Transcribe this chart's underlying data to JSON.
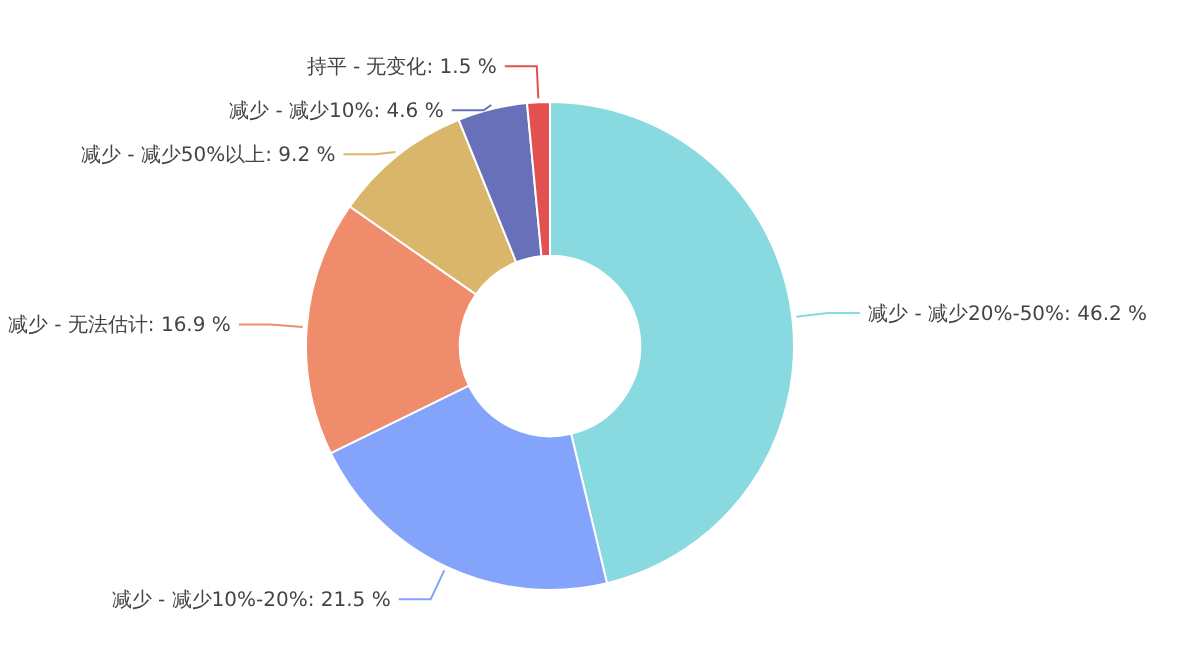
{
  "chart_data": {
    "type": "donut",
    "categories": [
      "减少 - 减少20%-50%",
      "减少 - 减少10%-20%",
      "减少 - 无法估计",
      "减少 - 减少50%以上",
      "减少 - 减少10%",
      "持平 - 无变化"
    ],
    "values": [
      46.2,
      21.5,
      16.9,
      9.2,
      4.6,
      1.5
    ],
    "colors": [
      "#88d9e0",
      "#84a3fb",
      "#ef8c6c",
      "#dab66b",
      "#6770b9",
      "#e25050"
    ],
    "value_labels": [
      "46.2 %",
      "21.5 %",
      "16.9 %",
      "9.2 %",
      "4.6 %",
      "1.5 %"
    ]
  }
}
